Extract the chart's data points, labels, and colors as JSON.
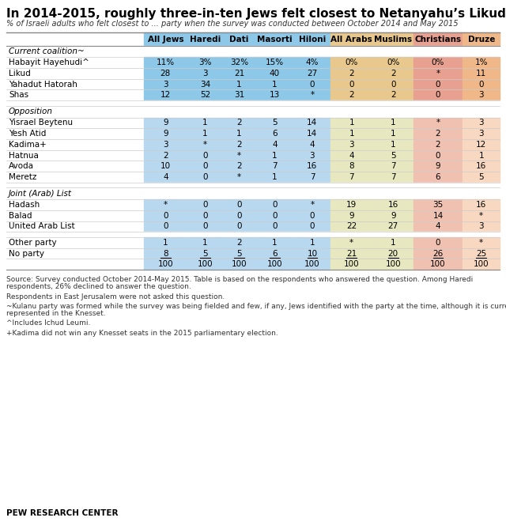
{
  "title": "In 2014-2015, roughly three-in-ten Jews felt closest to Netanyahu’s Likud party",
  "subtitle": "% of Israeli adults who felt closest to ... party when the survey was conducted between October 2014 and May 2015",
  "columns": [
    "All Jews",
    "Haredi",
    "Dati",
    "Masorti",
    "Hiloni",
    "All Arabs",
    "Muslims",
    "Christians",
    "Druze"
  ],
  "sections": [
    {
      "header": "Current coalition~",
      "jews_color": "#8ec8e8",
      "arabs_color": "#e8c88c",
      "christians_color": "#e8a090",
      "druze_color": "#f0b888",
      "rows": [
        {
          "label": "Habayit Hayehudi^",
          "values": [
            "11%",
            "3%",
            "32%",
            "15%",
            "4%",
            "0%",
            "0%",
            "0%",
            "1%"
          ]
        },
        {
          "label": "Likud",
          "values": [
            "28",
            "3",
            "21",
            "40",
            "27",
            "2",
            "2",
            "*",
            "11"
          ]
        },
        {
          "label": "Yahadut Hatorah",
          "values": [
            "3",
            "34",
            "1",
            "1",
            "0",
            "0",
            "0",
            "0",
            "0"
          ]
        },
        {
          "label": "Shas",
          "values": [
            "12",
            "52",
            "31",
            "13",
            "*",
            "2",
            "2",
            "0",
            "3"
          ]
        }
      ]
    },
    {
      "header": "Opposition",
      "jews_color": "#b8d8f0",
      "arabs_color": "#e8e8c0",
      "christians_color": "#f0c0b0",
      "druze_color": "#f8d8c0",
      "rows": [
        {
          "label": "Yisrael Beytenu",
          "values": [
            "9",
            "1",
            "2",
            "5",
            "14",
            "1",
            "1",
            "*",
            "3"
          ]
        },
        {
          "label": "Yesh Atid",
          "values": [
            "9",
            "1",
            "1",
            "6",
            "14",
            "1",
            "1",
            "2",
            "3"
          ]
        },
        {
          "label": "Kadima+",
          "values": [
            "3",
            "*",
            "2",
            "4",
            "4",
            "3",
            "1",
            "2",
            "12"
          ]
        },
        {
          "label": "Hatnua",
          "values": [
            "2",
            "0",
            "*",
            "1",
            "3",
            "4",
            "5",
            "0",
            "1"
          ]
        },
        {
          "label": "Avoda",
          "values": [
            "10",
            "0",
            "2",
            "7",
            "16",
            "8",
            "7",
            "9",
            "16"
          ]
        },
        {
          "label": "Meretz",
          "values": [
            "4",
            "0",
            "*",
            "1",
            "7",
            "7",
            "7",
            "6",
            "5"
          ]
        }
      ]
    },
    {
      "header": "Joint (Arab) List",
      "jews_color": "#b8d8f0",
      "arabs_color": "#e8e8c0",
      "christians_color": "#f0c0b0",
      "druze_color": "#f8d8c0",
      "rows": [
        {
          "label": "Hadash",
          "values": [
            "*",
            "0",
            "0",
            "0",
            "*",
            "19",
            "16",
            "35",
            "16"
          ]
        },
        {
          "label": "Balad",
          "values": [
            "0",
            "0",
            "0",
            "0",
            "0",
            "9",
            "9",
            "14",
            "*"
          ]
        },
        {
          "label": "United Arab List",
          "values": [
            "0",
            "0",
            "0",
            "0",
            "0",
            "22",
            "27",
            "4",
            "3"
          ]
        }
      ]
    }
  ],
  "extra_rows": [
    {
      "label": "Other party",
      "values": [
        "1",
        "1",
        "2",
        "1",
        "1",
        "*",
        "1",
        "0",
        "*"
      ]
    },
    {
      "label": "No party",
      "values": [
        "8",
        "5",
        "5",
        "6",
        "10",
        "21",
        "20",
        "26",
        "25"
      ],
      "underline": true
    },
    {
      "label": "",
      "values": [
        "100",
        "100",
        "100",
        "100",
        "100",
        "100",
        "100",
        "100",
        "100"
      ]
    }
  ],
  "footnote_lines": [
    "Source: Survey conducted October 2014-May 2015. Table is based on the respondents who answered the question. Among Haredi",
    "respondents, 26% declined to answer the question.",
    " ",
    "Respondents in East Jerusalem were not asked this question.",
    " ",
    "~Kulanu party was formed while the survey was being fielded and few, if any, Jews identified with the party at the time, although it is currently",
    "represented in the Knesset.",
    " ",
    "^Includes Ichud Leumi.",
    " ",
    "+Kadima did not win any Knesset seats in the 2015 parliamentary election."
  ],
  "source_label": "PEW RESEARCH CENTER",
  "header_jews_color": "#8ec8e8",
  "header_arabs_color": "#e8c88c",
  "header_christians_color": "#e8a090",
  "header_druze_color": "#f0b888",
  "extra_jews_color": "#b8d8f0",
  "extra_arabs_color": "#e8e8c0",
  "extra_christians_color": "#f0c0b0",
  "extra_druze_color": "#f8d8c0"
}
